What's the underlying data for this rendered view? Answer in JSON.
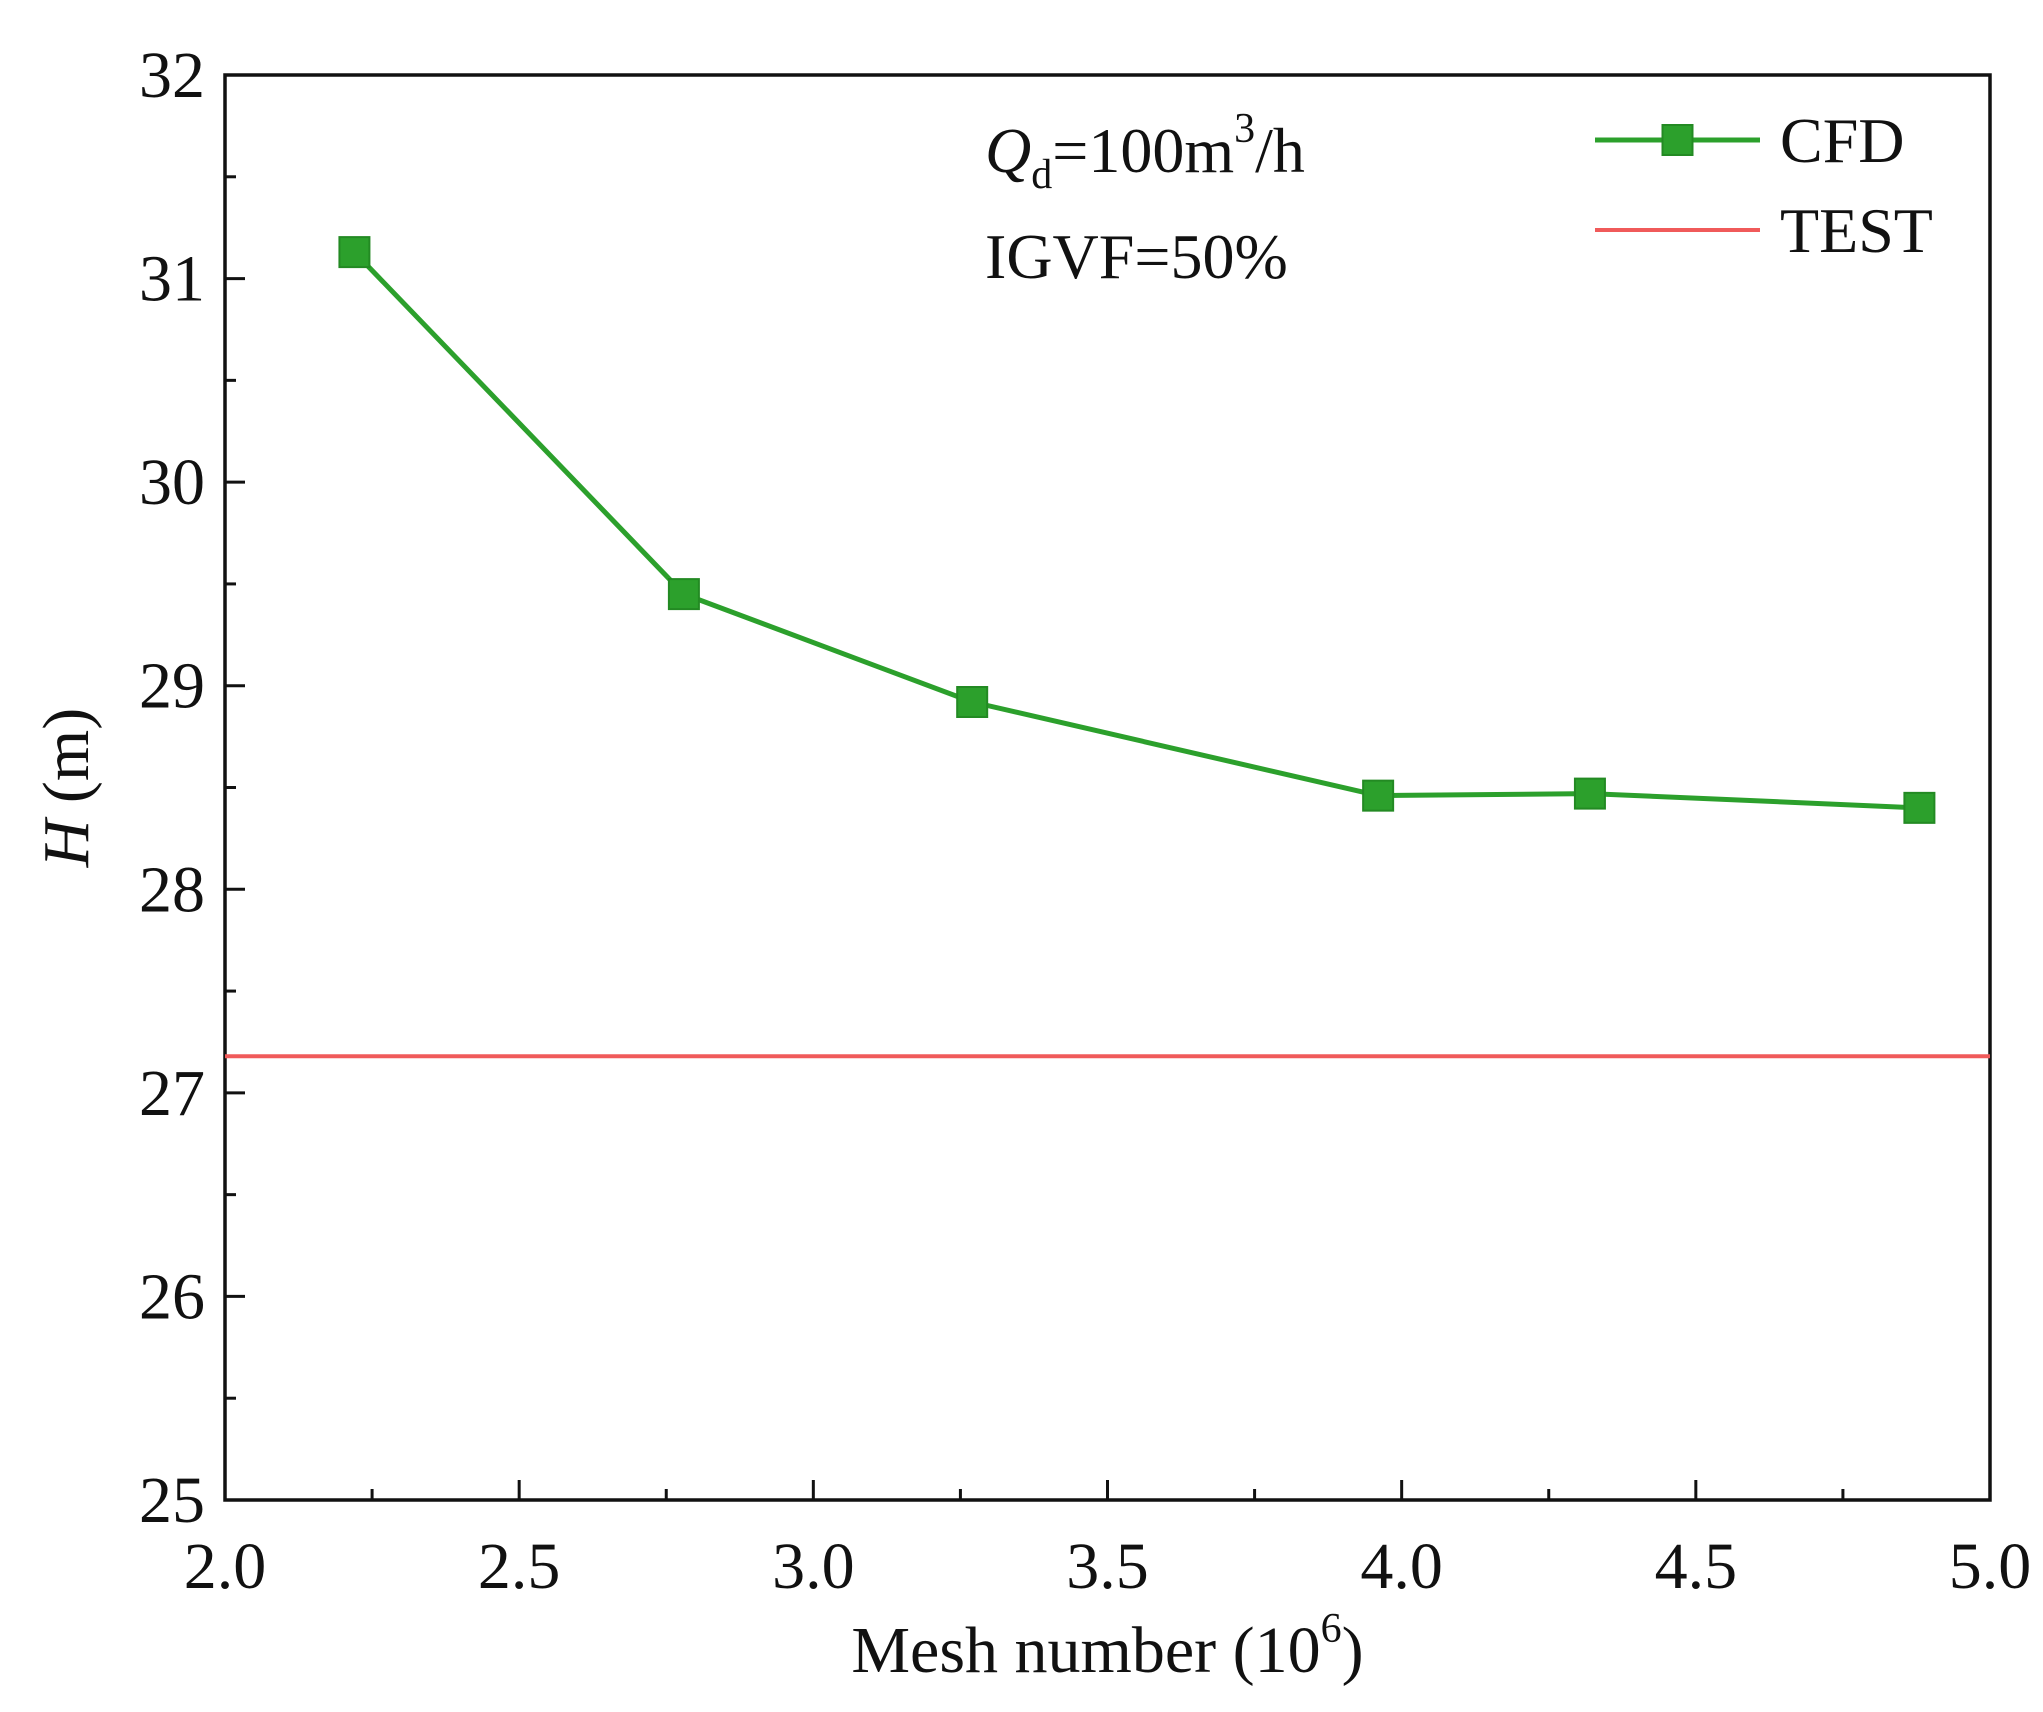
{
  "chart_data": {
    "type": "line",
    "title": "",
    "xlabel": {
      "prefix": "Mesh number (10",
      "exp": "6",
      "suffix": ")"
    },
    "ylabel": {
      "var": "H",
      "unit": " (m)"
    },
    "xlim": [
      2.0,
      5.0
    ],
    "ylim": [
      25,
      32
    ],
    "x_ticks": [
      "2.0",
      "2.5",
      "3.0",
      "3.5",
      "4.0",
      "4.5",
      "5.0"
    ],
    "x_tick_values": [
      2.0,
      2.5,
      3.0,
      3.5,
      4.0,
      4.5,
      5.0
    ],
    "y_ticks": [
      "25",
      "26",
      "27",
      "28",
      "29",
      "30",
      "31",
      "32"
    ],
    "y_tick_values": [
      25,
      26,
      27,
      28,
      29,
      30,
      31,
      32
    ],
    "grid": false,
    "legend_position": "top-right",
    "annotations": {
      "flow": {
        "q": "Q",
        "sub": "d",
        "mid": "=100m",
        "sup": "3",
        "end": "/h"
      },
      "igvf": "IGVF=50%"
    },
    "series": [
      {
        "name": "CFD",
        "color": "#2ca02c",
        "marker": "square",
        "x": [
          2.22,
          2.78,
          3.27,
          3.96,
          4.32,
          4.88
        ],
        "y": [
          31.13,
          29.45,
          28.92,
          28.46,
          28.47,
          28.4
        ]
      },
      {
        "name": "TEST",
        "color": "#f05a5a",
        "marker": "none",
        "constant": 27.18
      }
    ]
  }
}
